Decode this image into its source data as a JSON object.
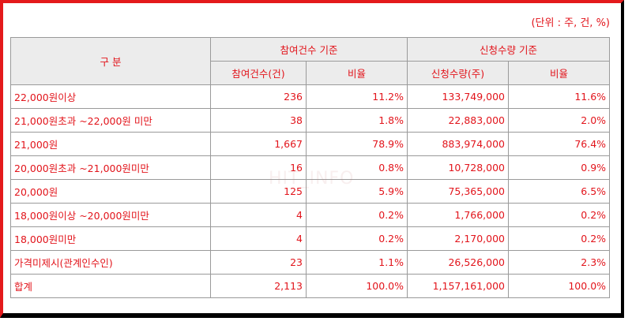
{
  "unit_note": "(단위 : 주, 건, %)",
  "header": {
    "category": "구 분",
    "group_count": "참여건수 기준",
    "group_qty": "신청수량 기준",
    "count_col": "참여건수(건)",
    "ratio_col_1": "비율",
    "qty_col": "신청수량(주)",
    "ratio_col_2": "비율"
  },
  "rows": [
    {
      "label": "22,000원이상",
      "count": "236",
      "count_ratio": "11.2%",
      "qty": "133,749,000",
      "qty_ratio": "11.6%"
    },
    {
      "label": "21,000원초과 ~22,000원 미만",
      "count": "38",
      "count_ratio": "1.8%",
      "qty": "22,883,000",
      "qty_ratio": "2.0%"
    },
    {
      "label": "21,000원",
      "count": "1,667",
      "count_ratio": "78.9%",
      "qty": "883,974,000",
      "qty_ratio": "76.4%"
    },
    {
      "label": "20,000원초과 ~21,000원미만",
      "count": "16",
      "count_ratio": "0.8%",
      "qty": "10,728,000",
      "qty_ratio": "0.9%"
    },
    {
      "label": "20,000원",
      "count": "125",
      "count_ratio": "5.9%",
      "qty": "75,365,000",
      "qty_ratio": "6.5%"
    },
    {
      "label": "18,000원이상 ~20,000원미만",
      "count": "4",
      "count_ratio": "0.2%",
      "qty": "1,766,000",
      "qty_ratio": "0.2%"
    },
    {
      "label": "18,000원미만",
      "count": "4",
      "count_ratio": "0.2%",
      "qty": "2,170,000",
      "qty_ratio": "0.2%"
    },
    {
      "label": "가격미제시(관계인수인)",
      "count": "23",
      "count_ratio": "1.1%",
      "qty": "26,526,000",
      "qty_ratio": "2.3%"
    },
    {
      "label": "합계",
      "count": "2,113",
      "count_ratio": "100.0%",
      "qty": "1,157,161,000",
      "qty_ratio": "100.0%"
    }
  ],
  "watermark": "HIT_INFO"
}
